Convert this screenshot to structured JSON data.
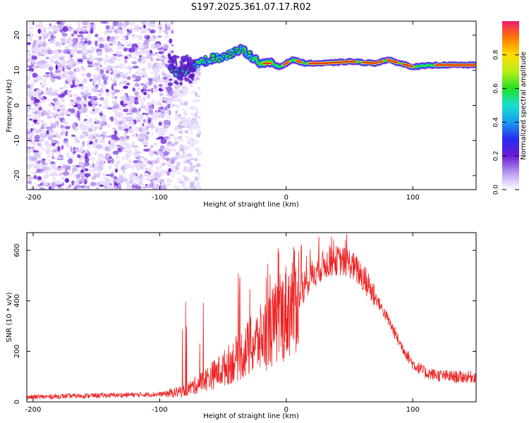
{
  "title": "S197.2025.361.07.17.R02",
  "colors": {
    "snr_line": "#ee2222",
    "ridge_core": "#d81b1b",
    "noise_purple": "#6a1bd6"
  },
  "chart_data": [
    {
      "type": "heatmap",
      "xlabel": "Height of straight line (km)",
      "ylabel": "Frequency (Hz)",
      "xlim": [
        -205,
        150
      ],
      "ylim": [
        -24,
        24
      ],
      "x_ticks": [
        -200,
        -100,
        0,
        100
      ],
      "y_ticks": [
        -20,
        -10,
        0,
        10,
        20
      ],
      "colorbar": {
        "label": "Normalized spectral amplitude",
        "range": [
          0,
          1
        ],
        "ticks": [
          "0.0",
          "0.2",
          "0.4",
          "0.6",
          "0.8"
        ]
      },
      "ridge": {
        "description_points_x": [
          -92,
          -85,
          -78,
          -70,
          -60,
          -50,
          -42,
          -35,
          -28,
          -20,
          -12,
          -5,
          5,
          15,
          30,
          50,
          70,
          80,
          90,
          100,
          120,
          150
        ],
        "description_points_y": [
          11,
          9,
          10,
          12,
          13,
          14,
          15,
          16,
          14,
          12,
          12,
          11,
          13,
          12,
          12,
          12.5,
          12,
          13,
          12,
          11,
          11.5,
          11.5
        ]
      }
    },
    {
      "type": "line",
      "xlabel": "Height of straight line (km)",
      "ylabel": "SNR (10 * v/v)",
      "xlim": [
        -205,
        150
      ],
      "ylim": [
        0,
        670
      ],
      "x_ticks": [
        -200,
        -100,
        0,
        100
      ],
      "y_ticks": [
        0,
        200,
        400,
        600
      ],
      "series": [
        {
          "name": "SNR",
          "x": [
            -205,
            -180,
            -150,
            -120,
            -100,
            -90,
            -80,
            -70,
            -60,
            -50,
            -40,
            -30,
            -20,
            -10,
            0,
            10,
            20,
            30,
            40,
            50,
            60,
            70,
            80,
            90,
            100,
            110,
            120,
            130,
            140,
            150
          ],
          "values": [
            18,
            22,
            25,
            28,
            30,
            35,
            45,
            70,
            100,
            130,
            170,
            210,
            250,
            300,
            360,
            420,
            500,
            545,
            560,
            550,
            500,
            420,
            330,
            230,
            150,
            115,
            105,
            100,
            98,
            100
          ]
        }
      ]
    }
  ]
}
